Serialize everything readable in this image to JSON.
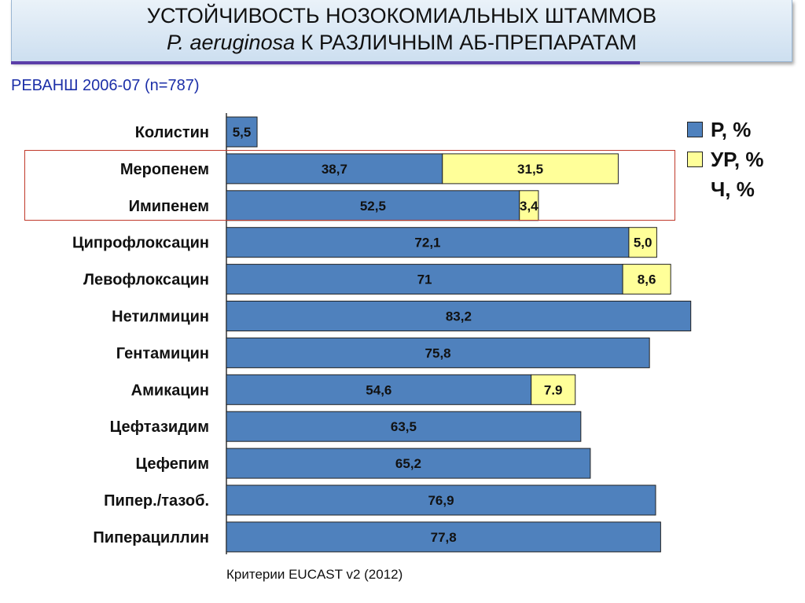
{
  "header": {
    "title_line1": "УСТОЙЧИВОСТЬ НОЗОКОМИАЛЬНЫХ ШТАММОВ",
    "title_line2_italic": "P. aeruginosa",
    "title_line2_rest": " К РАЗЛИЧНЫМ АБ-ПРЕПАРАТАМ",
    "subtitle": "РЕВАНШ 2006-07 (n=787)"
  },
  "footnote": "Критерии EUCAST v2 (2012)",
  "colors": {
    "resistant": "#4f81bd",
    "intermediate": "#ffff99",
    "highlight_border": "#c0392b"
  },
  "legend": [
    {
      "label": "Р, %",
      "color": "#4f81bd"
    },
    {
      "label": "УР, %",
      "color": "#ffff99"
    },
    {
      "label": "Ч, %",
      "color": null
    }
  ],
  "highlight_categories": [
    "Меропенем",
    "Имипенем"
  ],
  "chart_data": {
    "type": "bar",
    "orientation": "horizontal",
    "stacked": true,
    "xlim": [
      0,
      100
    ],
    "categories": [
      "Колистин",
      "Меропенем",
      "Имипенем",
      "Ципрофлоксацин",
      "Левофлоксацин",
      "Нетилмицин",
      "Гентамицин",
      "Амикацин",
      "Цефтазидим",
      "Цефепим",
      "Пипер./тазоб.",
      "Пиперациллин"
    ],
    "series": [
      {
        "name": "Р, %",
        "values": [
          5.5,
          38.7,
          52.5,
          72.1,
          71,
          83.2,
          75.8,
          54.6,
          63.5,
          65.2,
          76.9,
          77.8
        ],
        "labels": [
          "5,5",
          "38,7",
          "52,5",
          "72,1",
          "71",
          "83,2",
          "75,8",
          "54,6",
          "63,5",
          "65,2",
          "76,9",
          "77,8"
        ]
      },
      {
        "name": "УР, %",
        "values": [
          0,
          31.5,
          3.4,
          5.0,
          8.6,
          0,
          0,
          7.9,
          0,
          0,
          0,
          0
        ],
        "labels": [
          "",
          "31,5",
          "3,4",
          "5,0",
          "8,6",
          "",
          "",
          "7.9",
          "",
          "",
          "",
          ""
        ]
      }
    ]
  }
}
